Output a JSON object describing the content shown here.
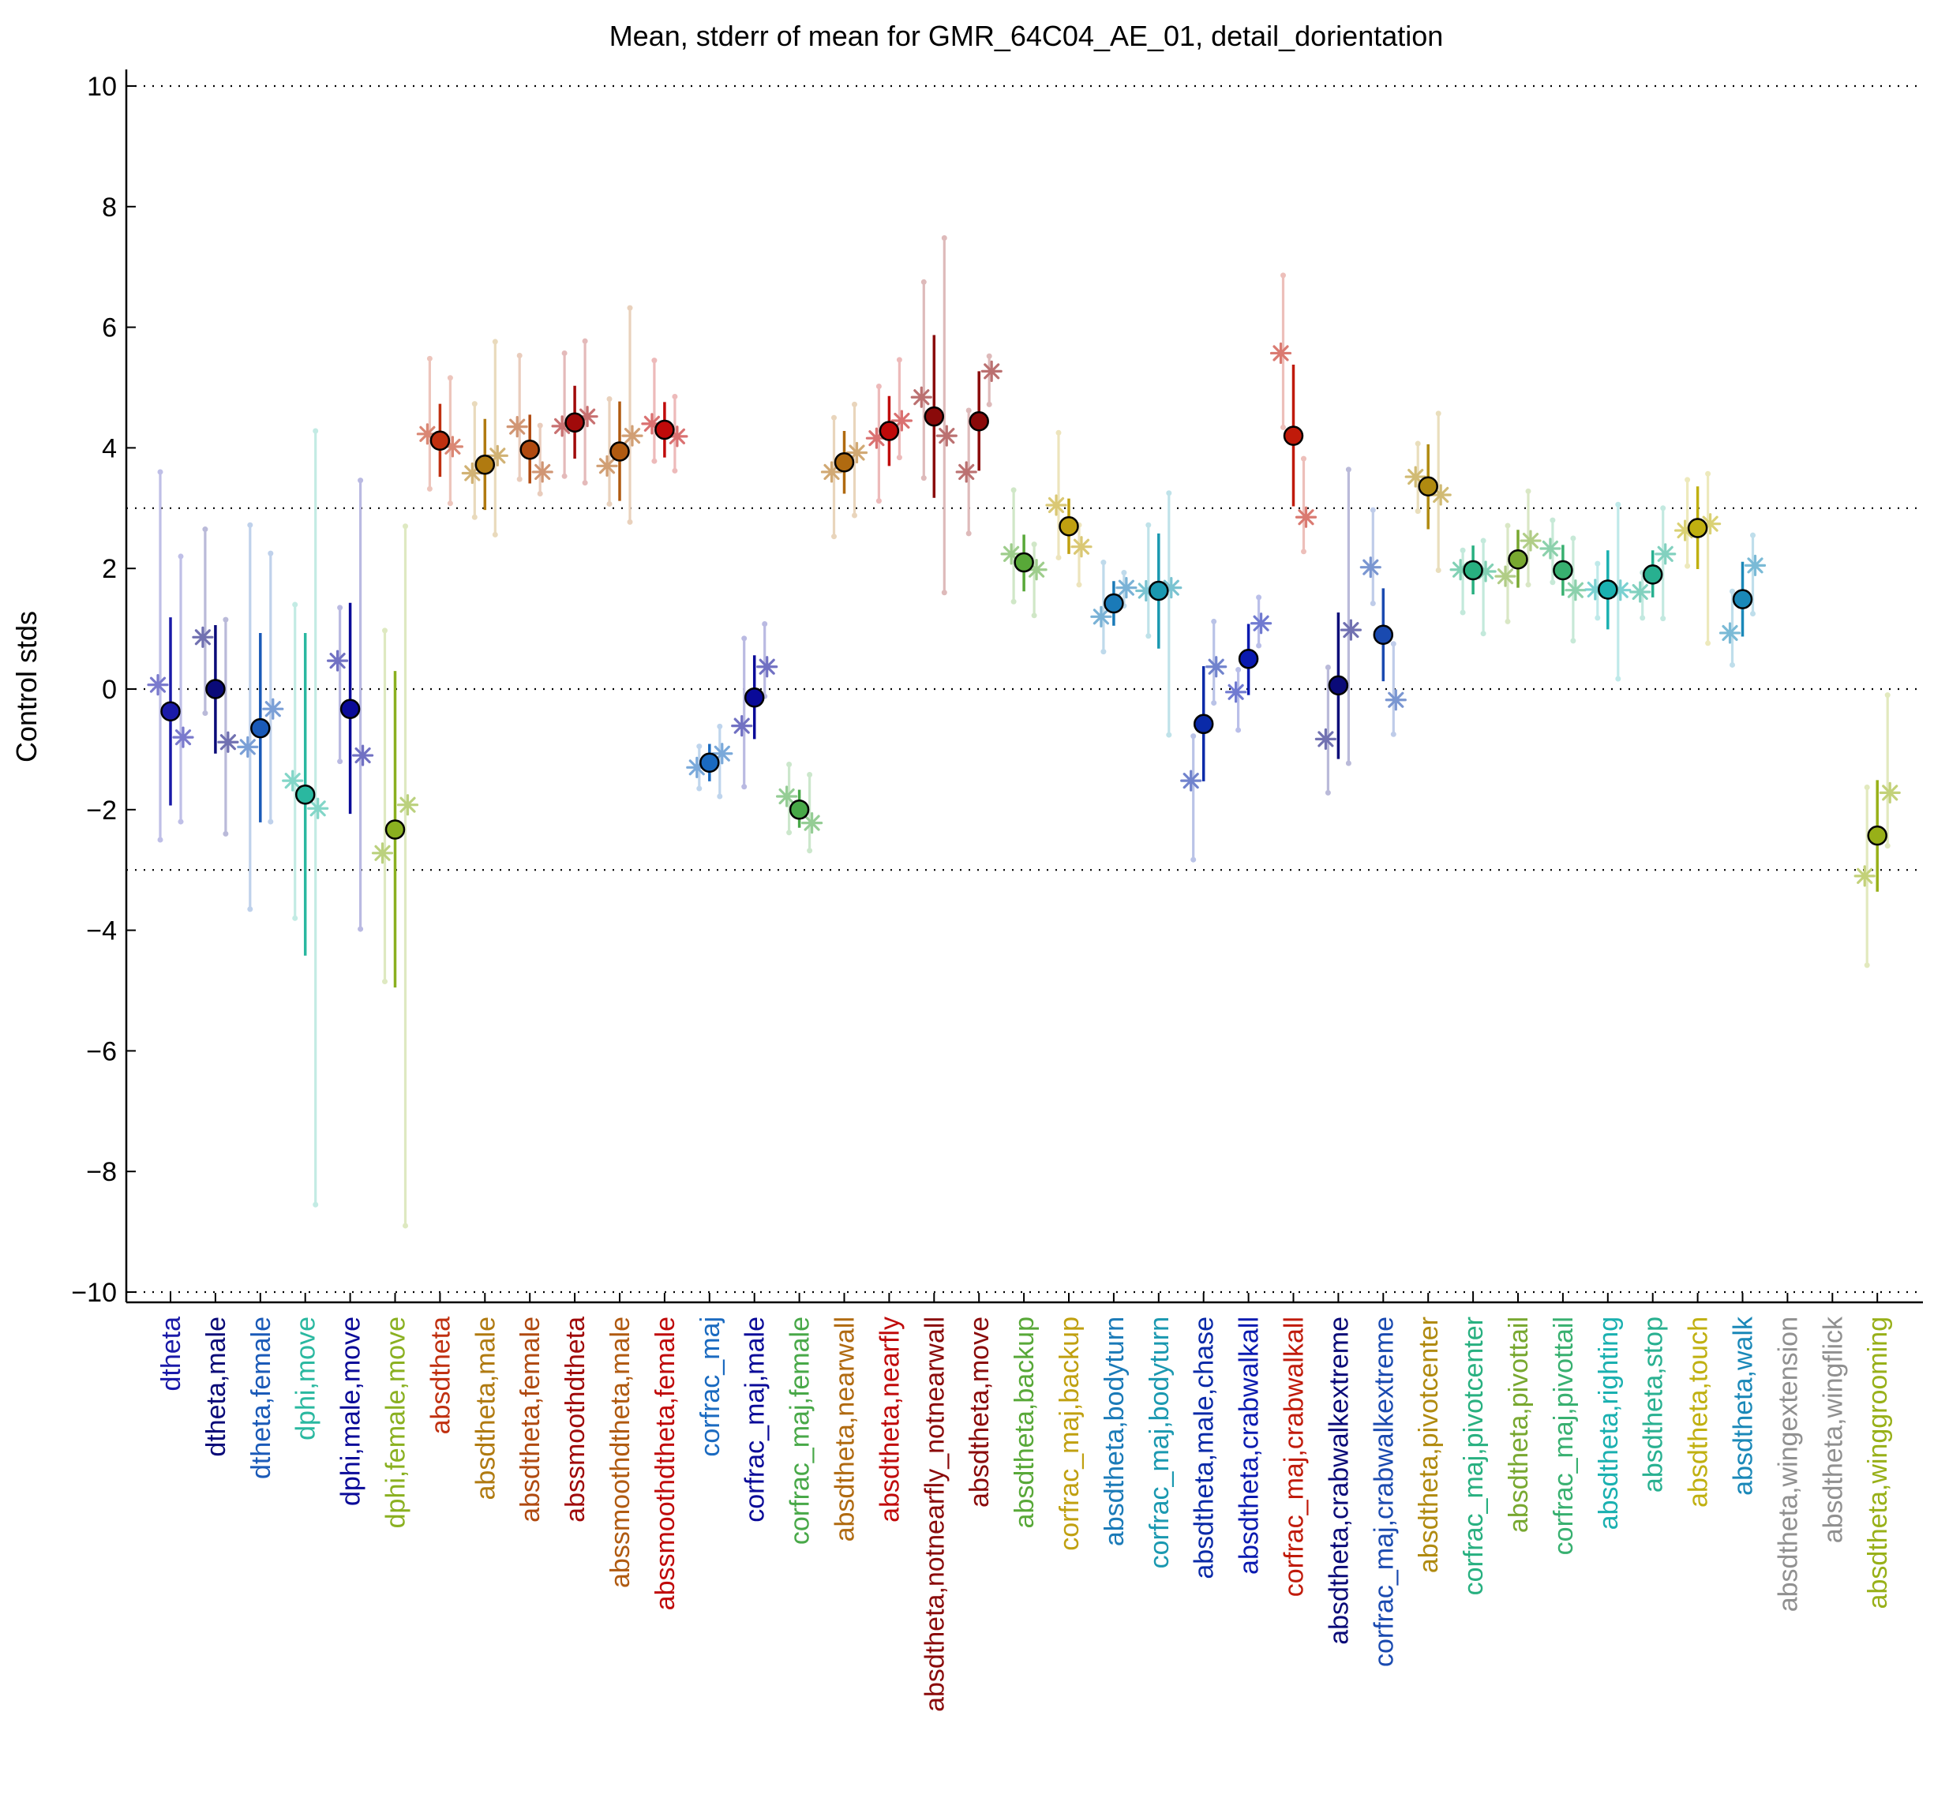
{
  "chart_data": {
    "type": "scatter",
    "title": "Mean, stderr of mean for GMR_64C04_AE_01, detail_dorientation",
    "xlabel": "",
    "ylabel": "Control stds",
    "ylim": [
      -10.2,
      10.2
    ],
    "yticks": [
      10,
      8,
      6,
      4,
      2,
      0,
      -2,
      -4,
      -6,
      -8,
      -10
    ],
    "ytick_labels": [
      "10",
      "8",
      "6",
      "4",
      "2",
      "0",
      "−2",
      "−4",
      "−6",
      "−8",
      "−10"
    ],
    "reference_lines": [
      10,
      3,
      0,
      -3,
      -10
    ],
    "grid": false,
    "legend": "none",
    "categories": [
      "dtheta",
      "dtheta,male",
      "dtheta,female",
      "dphi,move",
      "dphi,male,move",
      "dphi,female,move",
      "absdtheta",
      "absdtheta,male",
      "absdtheta,female",
      "abssmoothdtheta",
      "abssmoothdtheta,male",
      "abssmoothdtheta,female",
      "corfrac_maj",
      "corfrac_maj,male",
      "corfrac_maj,female",
      "absdtheta,nearwall",
      "absdtheta,nearfly",
      "absdtheta,notnearfly_notnearwall",
      "absdtheta,move",
      "absdtheta,backup",
      "corfrac_maj,backup",
      "absdtheta,bodyturn",
      "corfrac_maj,bodyturn",
      "absdtheta,male,chase",
      "absdtheta,crabwalkall",
      "corfrac_maj,crabwalkall",
      "absdtheta,crabwalkextreme",
      "corfrac_maj,crabwalkextreme",
      "absdtheta,pivotcenter",
      "corfrac_maj,pivotcenter",
      "absdtheta,pivottail",
      "corfrac_maj,pivottail",
      "absdtheta,righting",
      "absdtheta,stop",
      "absdtheta,touch",
      "absdtheta,walk",
      "absdtheta,wingextension",
      "absdtheta,wingflick",
      "absdtheta,winggrooming"
    ],
    "colors": [
      "#1a1aa8",
      "#0a0a78",
      "#1a5ab8",
      "#2ab8a0",
      "#0a0a98",
      "#8ab020",
      "#c03010",
      "#b07a10",
      "#b04a10",
      "#a00a0a",
      "#b05a10",
      "#c00a0a",
      "#1a6ac0",
      "#0a0a98",
      "#48a848",
      "#b06a10",
      "#c00a0a",
      "#8a0a0a",
      "#8a0a0a",
      "#58a838",
      "#c0a010",
      "#1a7ab8",
      "#1a98b0",
      "#0a2aa8",
      "#0a1ab0",
      "#c01a0a",
      "#0a0a78",
      "#1a4ab0",
      "#b08a10",
      "#28b080",
      "#78a830",
      "#38b070",
      "#1ab0b0",
      "#28b090",
      "#c0b010",
      "#1a88b8",
      "#909090",
      "#909090",
      "#98b018"
    ],
    "series": [
      {
        "name": "mean",
        "values": [
          -0.37,
          0.0,
          -0.65,
          -1.75,
          -0.33,
          -2.33,
          4.12,
          3.72,
          3.97,
          4.42,
          3.94,
          4.3,
          -1.22,
          -0.14,
          -2.0,
          3.76,
          4.28,
          4.52,
          4.44,
          2.1,
          2.7,
          1.42,
          1.63,
          -0.58,
          0.5,
          4.2,
          0.06,
          0.9,
          3.36,
          1.97,
          2.15,
          1.97,
          1.65,
          1.9,
          2.67,
          1.49,
          null,
          null,
          -2.43
        ]
      },
      {
        "name": "stderr_low",
        "values": [
          -1.93,
          -1.07,
          -2.21,
          -4.42,
          -2.07,
          -4.95,
          3.52,
          2.97,
          3.41,
          3.82,
          3.12,
          3.84,
          -1.53,
          -0.83,
          -2.3,
          3.24,
          3.7,
          3.17,
          3.62,
          1.62,
          2.24,
          1.05,
          0.67,
          -1.53,
          -0.1,
          3.03,
          -1.16,
          0.13,
          2.65,
          1.57,
          1.68,
          1.55,
          0.99,
          1.52,
          1.99,
          0.87,
          null,
          null,
          -3.36
        ]
      },
      {
        "name": "stderr_high",
        "values": [
          1.19,
          1.06,
          0.93,
          0.93,
          1.43,
          0.3,
          4.73,
          4.48,
          4.55,
          5.03,
          4.77,
          4.76,
          -0.91,
          0.56,
          -1.67,
          4.28,
          4.86,
          5.87,
          5.27,
          2.56,
          3.16,
          1.79,
          2.58,
          0.38,
          1.08,
          5.38,
          1.27,
          1.67,
          4.06,
          2.38,
          2.64,
          2.39,
          2.3,
          2.3,
          3.36,
          2.11,
          null,
          null,
          -1.51
        ]
      },
      {
        "name": "sub_means",
        "values": [
          [
            0.07,
            -0.8
          ],
          [
            0.86,
            -0.88
          ],
          [
            -0.96,
            -0.33
          ],
          [
            -1.52,
            -1.98
          ],
          [
            0.47,
            -1.1
          ],
          [
            -2.72,
            -1.92
          ],
          [
            4.23,
            4.02
          ],
          [
            3.58,
            3.87
          ],
          [
            4.35,
            3.6
          ],
          [
            4.36,
            4.52
          ],
          [
            3.7,
            4.2
          ],
          [
            4.4,
            4.19
          ],
          [
            -1.3,
            -1.07
          ],
          [
            -0.61,
            0.37
          ],
          [
            -1.78,
            -2.22
          ],
          [
            3.6,
            3.92
          ],
          [
            4.16,
            4.45
          ],
          [
            4.84,
            4.2
          ],
          [
            3.6,
            5.27
          ],
          [
            2.24,
            1.98
          ],
          [
            3.05,
            2.36
          ],
          [
            1.2,
            1.68
          ],
          [
            1.63,
            1.68
          ],
          [
            -1.52,
            0.37
          ],
          [
            -0.05,
            1.09
          ],
          [
            5.57,
            2.85
          ],
          [
            -0.83,
            0.98
          ],
          [
            2.02,
            -0.18
          ],
          [
            3.52,
            3.22
          ],
          [
            1.98,
            1.95
          ],
          [
            1.87,
            2.46
          ],
          [
            2.33,
            1.64
          ],
          [
            1.65,
            1.64
          ],
          [
            1.61,
            2.24
          ],
          [
            2.63,
            2.74
          ],
          [
            0.93,
            2.05
          ],
          [
            null,
            null
          ],
          [
            null,
            null
          ],
          [
            -3.1,
            -1.72
          ]
        ]
      },
      {
        "name": "sub_ranges",
        "values": [
          [
            [
              -2.5,
              3.6
            ],
            [
              -2.2,
              2.2
            ]
          ],
          [
            [
              -0.4,
              2.65
            ],
            [
              -2.4,
              1.15
            ]
          ],
          [
            [
              -3.65,
              2.72
            ],
            [
              -2.2,
              2.25
            ]
          ],
          [
            [
              -3.8,
              1.4
            ],
            [
              -8.55,
              4.28
            ]
          ],
          [
            [
              -1.2,
              1.35
            ],
            [
              -3.98,
              3.46
            ]
          ],
          [
            [
              -4.85,
              0.97
            ],
            [
              -8.9,
              2.7
            ]
          ],
          [
            [
              3.32,
              5.48
            ],
            [
              3.08,
              5.16
            ]
          ],
          [
            [
              2.85,
              4.73
            ],
            [
              2.56,
              5.76
            ]
          ],
          [
            [
              3.48,
              5.53
            ],
            [
              3.24,
              4.37
            ]
          ],
          [
            [
              3.53,
              5.57
            ],
            [
              3.42,
              5.77
            ]
          ],
          [
            [
              3.07,
              4.81
            ],
            [
              2.77,
              6.32
            ]
          ],
          [
            [
              3.78,
              5.45
            ],
            [
              3.62,
              4.85
            ]
          ],
          [
            [
              -1.65,
              -0.95
            ],
            [
              -1.78,
              -0.62
            ]
          ],
          [
            [
              -1.62,
              0.84
            ],
            [
              -0.12,
              1.08
            ]
          ],
          [
            [
              -2.38,
              -1.25
            ],
            [
              -2.68,
              -1.42
            ]
          ],
          [
            [
              2.53,
              4.5
            ],
            [
              2.88,
              4.72
            ]
          ],
          [
            [
              3.12,
              5.02
            ],
            [
              3.84,
              5.46
            ]
          ],
          [
            [
              3.5,
              6.75
            ],
            [
              1.6,
              7.48
            ]
          ],
          [
            [
              2.58,
              4.62
            ],
            [
              4.72,
              5.52
            ]
          ],
          [
            [
              1.45,
              3.3
            ],
            [
              1.22,
              2.4
            ]
          ],
          [
            [
              2.18,
              4.25
            ],
            [
              1.73,
              2.72
            ]
          ],
          [
            [
              0.62,
              2.1
            ],
            [
              1.38,
              1.93
            ]
          ],
          [
            [
              0.88,
              2.72
            ],
            [
              -0.76,
              3.25
            ]
          ],
          [
            [
              -2.83,
              -0.78
            ],
            [
              -0.23,
              1.12
            ]
          ],
          [
            [
              -0.68,
              0.32
            ],
            [
              0.72,
              1.52
            ]
          ],
          [
            [
              4.34,
              6.86
            ],
            [
              2.28,
              3.82
            ]
          ],
          [
            [
              -1.72,
              0.36
            ],
            [
              -1.23,
              3.64
            ]
          ],
          [
            [
              1.42,
              2.97
            ],
            [
              -0.75,
              0.75
            ]
          ],
          [
            [
              2.95,
              4.07
            ],
            [
              1.97,
              4.57
            ]
          ],
          [
            [
              1.27,
              2.3
            ],
            [
              0.92,
              2.46
            ]
          ],
          [
            [
              1.12,
              2.71
            ],
            [
              1.73,
              3.28
            ]
          ],
          [
            [
              1.77,
              2.8
            ],
            [
              0.8,
              2.5
            ]
          ],
          [
            [
              1.18,
              2.08
            ],
            [
              0.17,
              3.06
            ]
          ],
          [
            [
              1.18,
              1.93
            ],
            [
              1.17,
              3.0
            ]
          ],
          [
            [
              2.04,
              3.47
            ],
            [
              0.76,
              3.57
            ]
          ],
          [
            [
              0.4,
              1.62
            ],
            [
              1.25,
              2.55
            ]
          ],
          [
            [
              null,
              null
            ],
            [
              null,
              null
            ]
          ],
          [
            [
              null,
              null
            ],
            [
              null,
              null
            ]
          ],
          [
            [
              -4.58,
              -1.63
            ],
            [
              -2.6,
              -0.1
            ]
          ]
        ]
      }
    ]
  }
}
